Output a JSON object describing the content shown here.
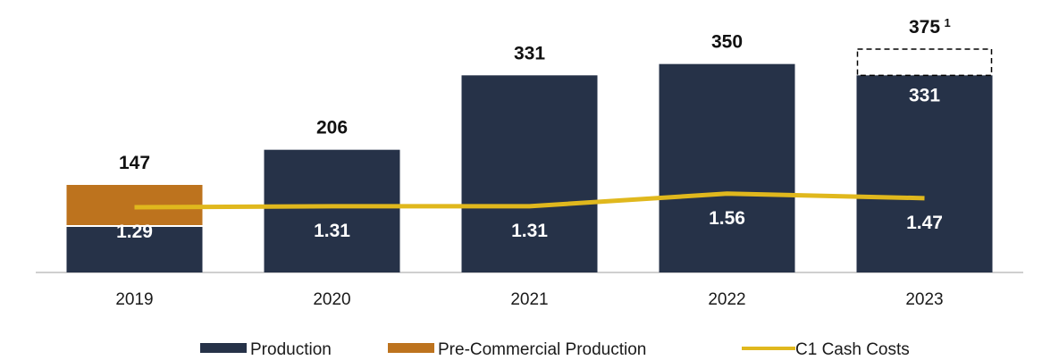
{
  "chart_data": {
    "type": "bar",
    "categories": [
      "2019",
      "2020",
      "2021",
      "2022",
      "2023"
    ],
    "series": [
      {
        "name": "Production",
        "values": [
          78,
          206,
          331,
          350,
          331
        ],
        "color": "#263248"
      },
      {
        "name": "Pre-Commercial Production",
        "values": [
          69,
          0,
          0,
          0,
          0
        ],
        "color": "#bd731e"
      },
      {
        "name": "C1 Cash Costs",
        "type": "line",
        "values": [
          1.29,
          1.31,
          1.31,
          1.56,
          1.47
        ],
        "color": "#e0b81d"
      }
    ],
    "totals": [
      147,
      206,
      331,
      350,
      375
    ],
    "total_labels": [
      "147",
      "206",
      "331",
      "350",
      "375"
    ],
    "forecast_increment": {
      "category": "2023",
      "base": 331,
      "base_label": "331",
      "total": 375,
      "footnote": "1"
    },
    "cost_labels": [
      "1.29",
      "1.31",
      "1.31",
      "1.56",
      "1.47"
    ],
    "ylim": [
      0,
      420
    ],
    "cost_ylim": [
      0,
      4.95
    ],
    "title": "",
    "xlabel": "",
    "ylabel": "",
    "legend_position": "bottom",
    "grid": false
  }
}
